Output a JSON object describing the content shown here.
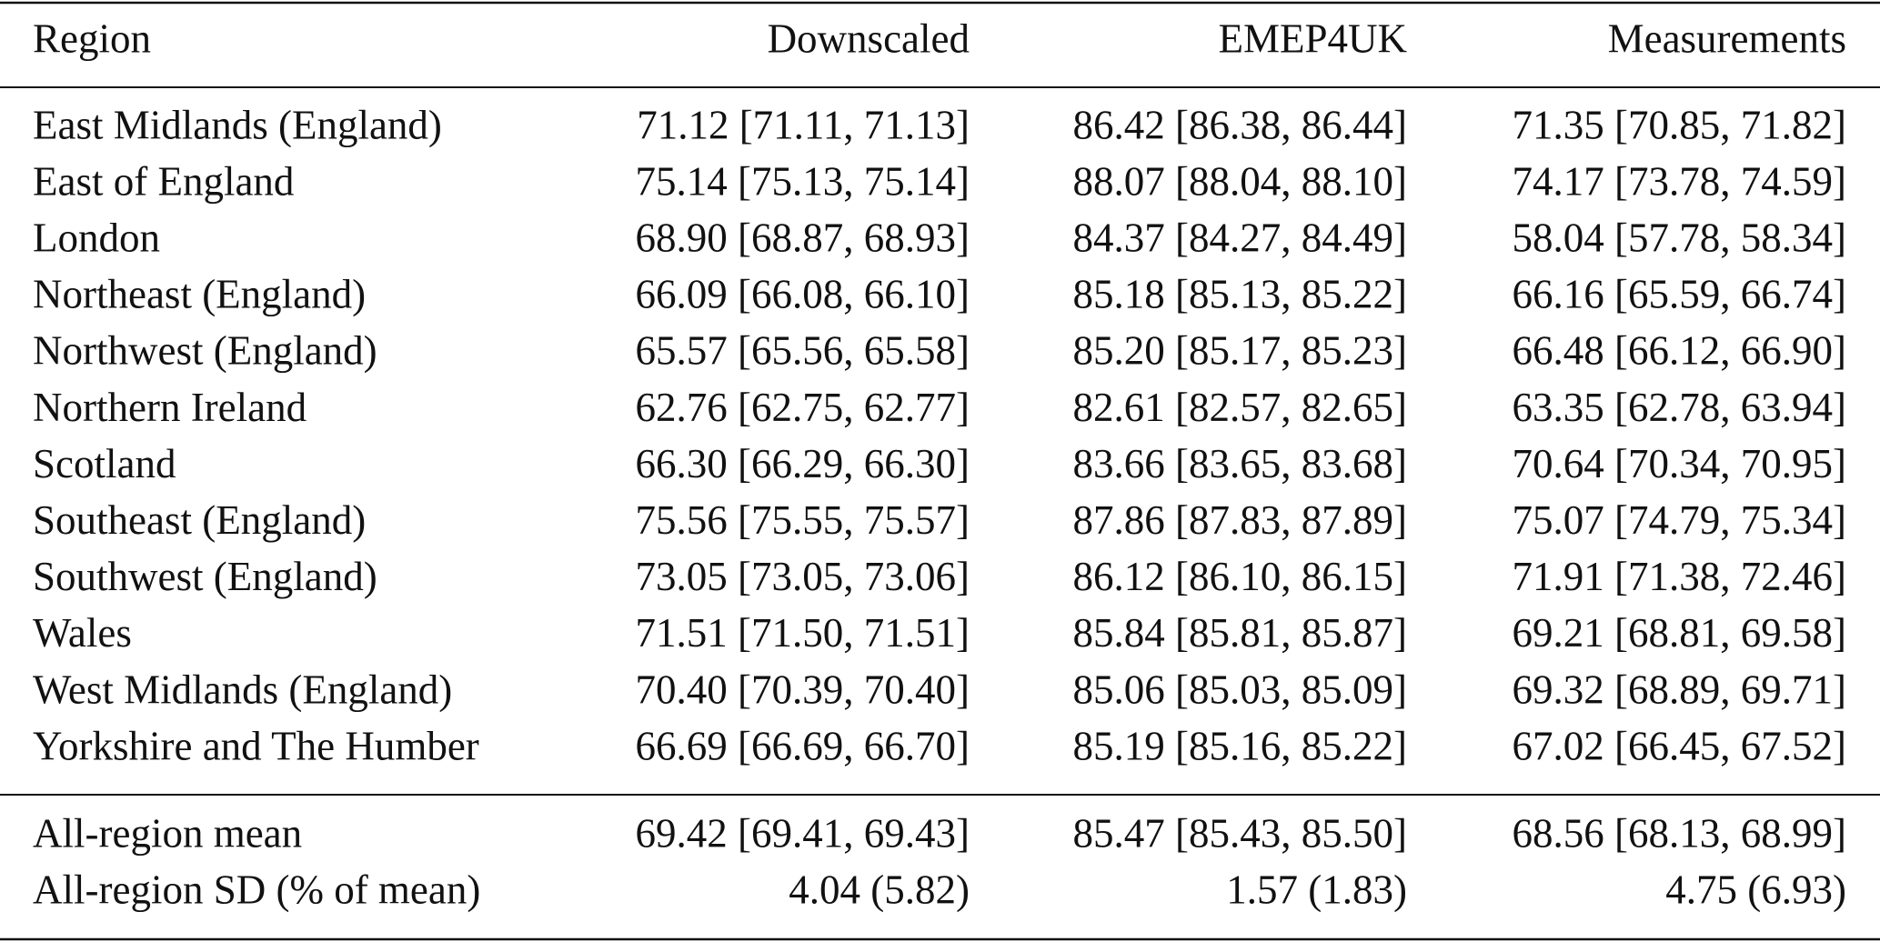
{
  "table": {
    "header": [
      "Region",
      "Downscaled",
      "EMEP4UK",
      "Measurements"
    ],
    "rows": [
      [
        "East Midlands (England)",
        "71.12 [71.11, 71.13]",
        "86.42 [86.38, 86.44]",
        "71.35 [70.85, 71.82]"
      ],
      [
        "East of England",
        "75.14 [75.13, 75.14]",
        "88.07 [88.04, 88.10]",
        "74.17 [73.78, 74.59]"
      ],
      [
        "London",
        "68.90 [68.87, 68.93]",
        "84.37 [84.27, 84.49]",
        "58.04 [57.78, 58.34]"
      ],
      [
        "Northeast (England)",
        "66.09 [66.08, 66.10]",
        "85.18 [85.13, 85.22]",
        "66.16 [65.59, 66.74]"
      ],
      [
        "Northwest (England)",
        "65.57 [65.56, 65.58]",
        "85.20 [85.17, 85.23]",
        "66.48 [66.12, 66.90]"
      ],
      [
        "Northern Ireland",
        "62.76 [62.75, 62.77]",
        "82.61 [82.57, 82.65]",
        "63.35 [62.78, 63.94]"
      ],
      [
        "Scotland",
        "66.30 [66.29, 66.30]",
        "83.66 [83.65, 83.68]",
        "70.64 [70.34, 70.95]"
      ],
      [
        "Southeast (England)",
        "75.56 [75.55, 75.57]",
        "87.86 [87.83, 87.89]",
        "75.07 [74.79, 75.34]"
      ],
      [
        "Southwest (England)",
        "73.05 [73.05, 73.06]",
        "86.12 [86.10, 86.15]",
        "71.91 [71.38, 72.46]"
      ],
      [
        "Wales",
        "71.51 [71.50, 71.51]",
        "85.84 [85.81, 85.87]",
        "69.21 [68.81, 69.58]"
      ],
      [
        "West Midlands (England)",
        "70.40 [70.39, 70.40]",
        "85.06 [85.03, 85.09]",
        "69.32 [68.89, 69.71]"
      ],
      [
        "Yorkshire and The Humber",
        "66.69 [66.69, 66.70]",
        "85.19 [85.16, 85.22]",
        "67.02 [66.45, 67.52]"
      ]
    ],
    "summary": [
      [
        "All-region mean",
        "69.42 [69.41, 69.43]",
        "85.47 [85.43, 85.50]",
        "68.56 [68.13, 68.99]"
      ],
      [
        "All-region SD (% of mean)",
        "4.04 (5.82)",
        "1.57 (1.83)",
        "4.75 (6.93)"
      ]
    ]
  }
}
